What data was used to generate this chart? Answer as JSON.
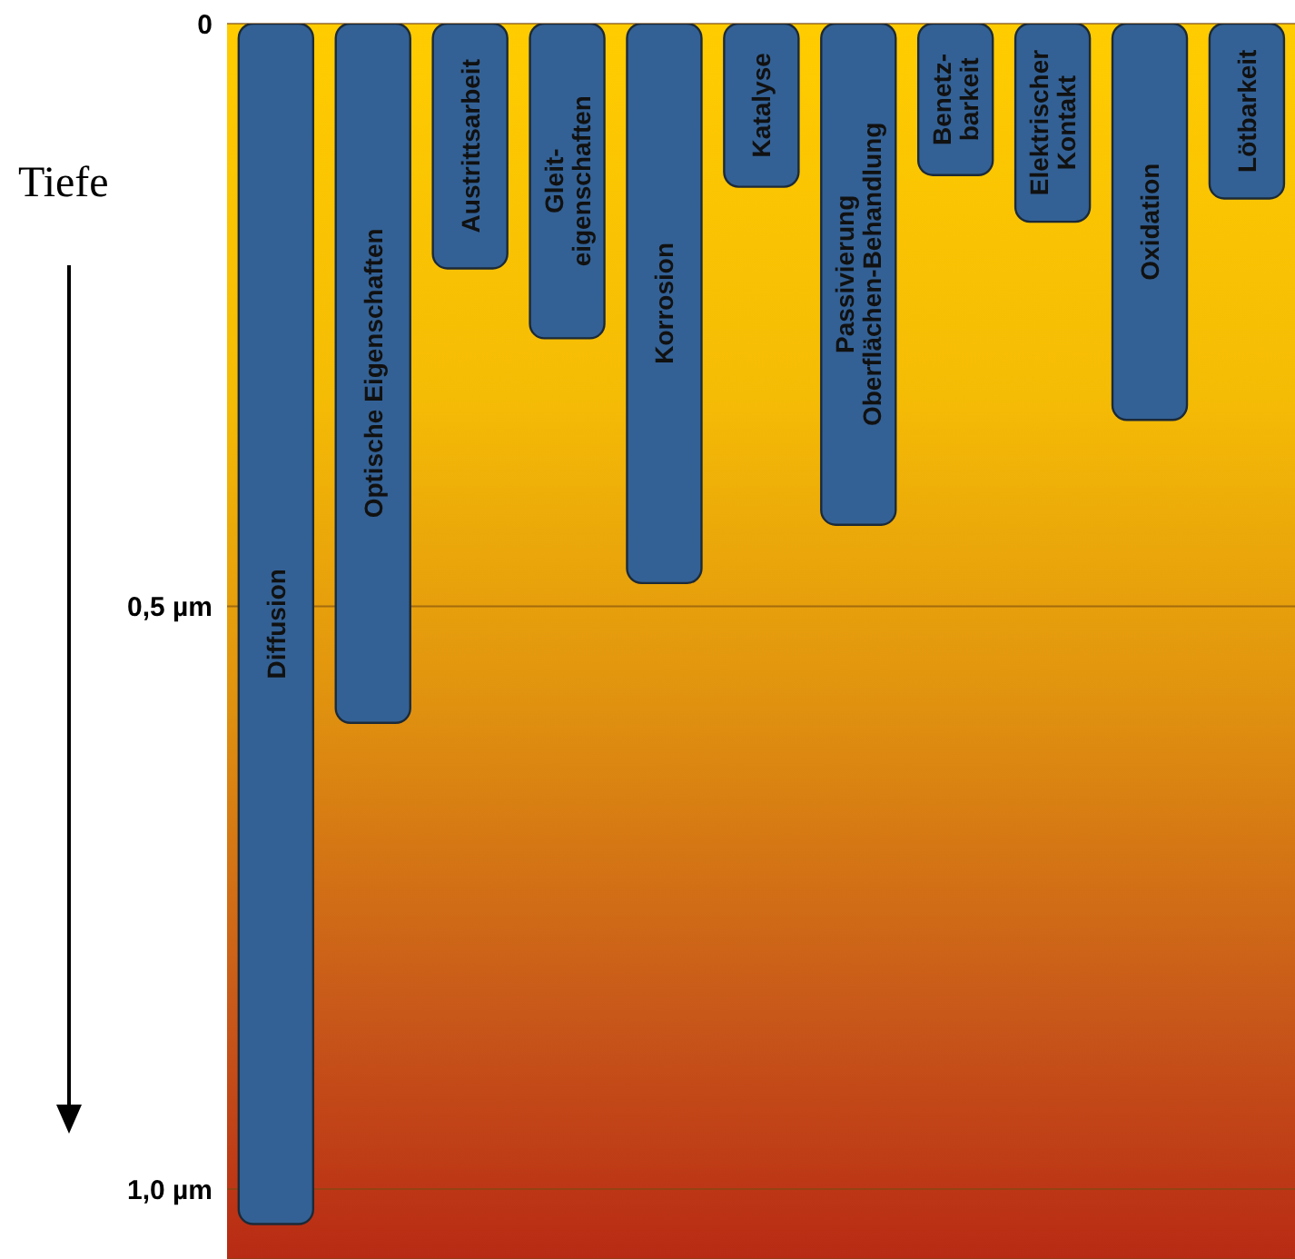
{
  "chart_data": {
    "type": "bar",
    "ylabel": "Tiefe",
    "categories": [
      "Diffusion",
      "Optische Eigenschaften",
      "Austrittsarbeit",
      "Gleit-\neigenschaften",
      "Korrosion",
      "Katalyse",
      "Passivierung\nOberflächen-Behandlung",
      "Benetz-\nbarkeit",
      "Elektrischer\nKontakt",
      "Oxidation",
      "Lötbarkeit"
    ],
    "values": [
      1.03,
      0.6,
      0.21,
      0.27,
      0.48,
      0.14,
      0.43,
      0.13,
      0.17,
      0.34,
      0.15
    ],
    "color": "#336195",
    "ylim": [
      1.06,
      0
    ],
    "yticks": [
      0,
      {
        "value": 0.5,
        "label": "0,5 µm"
      },
      {
        "value": 1.0,
        "label": "1,0 µm"
      }
    ],
    "grid": "y",
    "tick_labels": "y"
  }
}
